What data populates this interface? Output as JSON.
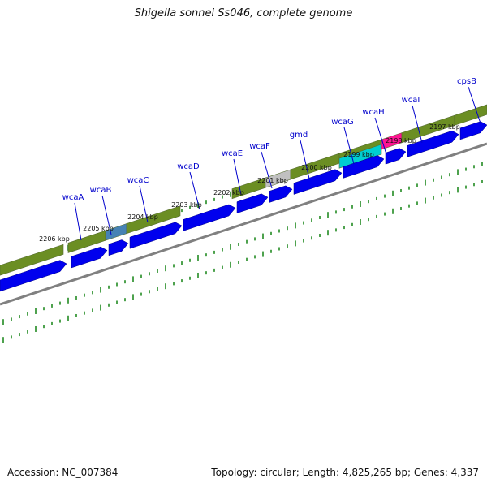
{
  "title": "Shigella sonnei Ss046, complete genome",
  "accession_text": "Accession: NC_007384",
  "summary_text": "Topology: circular; Length: 4,825,265 bp; Genes: 4,337",
  "colors": {
    "gene_blue": "#0000ee",
    "bar_olive": "#6b8e23",
    "bar_olive_dark": "#556b2f",
    "tick_green": "#228b22",
    "label_blue": "#0000cc",
    "gray_segment": "#c0c0c0",
    "highlight_blue": "#4682b4",
    "highlight_cyan": "#00ced1",
    "highlight_pink": "#ff1493",
    "backbone_gray": "#808080"
  },
  "gene_labels": [
    "wcaA",
    "wcaB",
    "wcaC",
    "wcaD",
    "wcaE",
    "wcaF",
    "gmd",
    "wcaG",
    "wcaH",
    "wcaI",
    "cpsB"
  ],
  "position_labels": [
    "2206 kbp",
    "2205 kbp",
    "2204 kbp",
    "2203 kbp",
    "2202 kbp",
    "2201 kbp",
    "2200 kbp",
    "2199 kbp",
    "2198 kbp",
    "2197 kbp"
  ]
}
